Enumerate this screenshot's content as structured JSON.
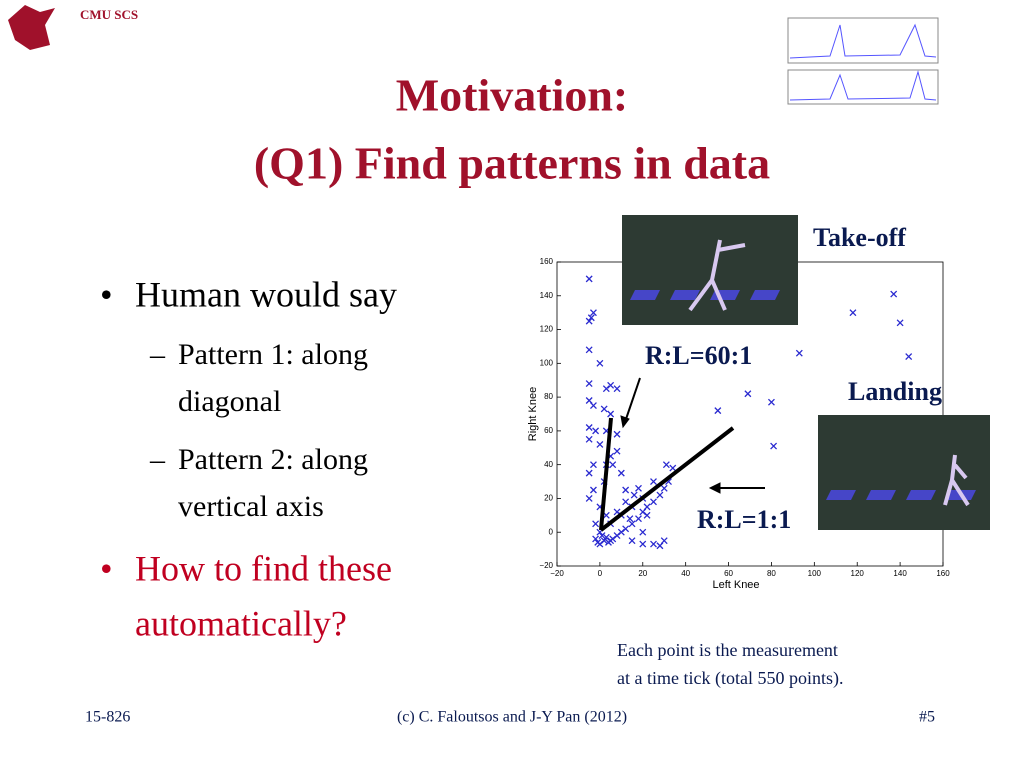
{
  "header": {
    "logo_text": "CMU SCS"
  },
  "title": {
    "line1": "Motivation:",
    "line2": "(Q1) Find patterns in data"
  },
  "bullets": [
    {
      "text": "Human would say",
      "sub": [
        "Pattern 1: along",
        "diagonal",
        "Pattern 2: along",
        "vertical axis"
      ]
    },
    {
      "text": "How to find these",
      "text2": "automatically?"
    }
  ],
  "chart_data": {
    "type": "scatter",
    "xlabel": "Left Knee",
    "ylabel": "Right Knee",
    "color": "#2a2ad0",
    "xlim": [
      -20,
      160
    ],
    "ylim": [
      -20,
      160
    ],
    "xticks": [
      {
        "value": -20,
        "label": "−20"
      },
      0,
      20,
      40,
      60,
      80,
      100,
      120,
      140,
      160
    ],
    "yticks": [
      {
        "value": -20,
        "label": "−20"
      },
      0,
      20,
      40,
      60,
      80,
      100,
      120,
      140,
      160
    ],
    "x": [
      -5,
      -4,
      -3,
      -5,
      -5,
      0,
      -5,
      3,
      5,
      8,
      -5,
      -3,
      2,
      5,
      -5,
      -2,
      8,
      -5,
      0,
      5,
      8,
      -3,
      3,
      -5,
      2,
      -3,
      -5,
      0,
      3,
      -2,
      0,
      1,
      2,
      -1,
      3,
      5,
      -2,
      0,
      4,
      6,
      8,
      10,
      12,
      15,
      18,
      20,
      22,
      25,
      28,
      30,
      32,
      34,
      31,
      25,
      20,
      15,
      10,
      5,
      8,
      12,
      16,
      18,
      14,
      22,
      20,
      15,
      20,
      25,
      30,
      28,
      55,
      69,
      80,
      81,
      137,
      140,
      118,
      144,
      93,
      3,
      6,
      10,
      12
    ],
    "values": [
      150,
      127,
      130,
      125,
      108,
      100,
      88,
      85,
      87,
      85,
      78,
      75,
      73,
      70,
      62,
      60,
      58,
      55,
      52,
      45,
      48,
      40,
      40,
      35,
      30,
      25,
      20,
      15,
      10,
      5,
      0,
      -2,
      -5,
      -6,
      -3,
      -5,
      -4,
      -7,
      -6,
      -4,
      -2,
      0,
      2,
      5,
      8,
      12,
      15,
      18,
      22,
      26,
      30,
      38,
      40,
      30,
      20,
      15,
      10,
      5,
      12,
      18,
      22,
      26,
      8,
      10,
      0,
      -5,
      -7,
      -7,
      -5,
      -8,
      72,
      82,
      77,
      51,
      141,
      124,
      130,
      104,
      106,
      60,
      40,
      35,
      25
    ],
    "annotations": [
      "R:L=60:1",
      "R:L=1:1",
      "Take-off",
      "Landing"
    ]
  },
  "caption": [
    "Each point is the measurement",
    "at a time tick (total 550 points)."
  ],
  "footer": {
    "left": "15-826",
    "center": "(c) C. Faloutsos and J-Y Pan (2012)",
    "right": "#5"
  }
}
